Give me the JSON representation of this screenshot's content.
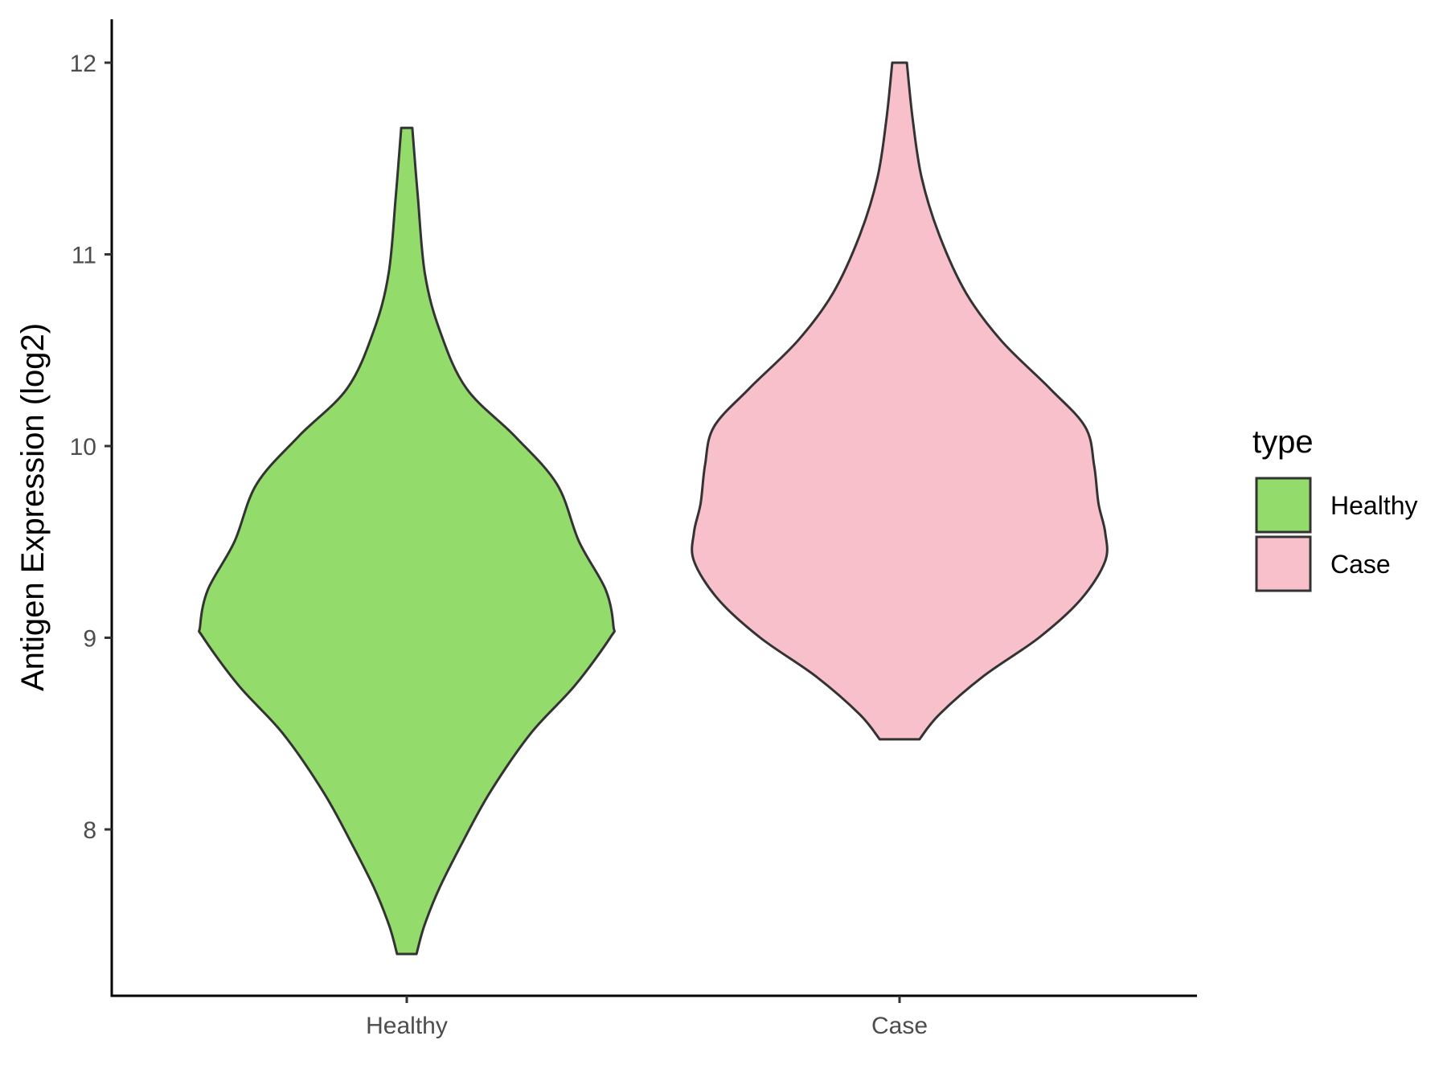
{
  "chart_data": {
    "type": "violin",
    "ylabel": "Antigen Expression (log2)",
    "xlabel": "",
    "categories": [
      "Healthy",
      "Case"
    ],
    "yticks": [
      8,
      9,
      10,
      11,
      12
    ],
    "ylim": [
      7.13,
      12.23
    ],
    "grid": false,
    "legend": {
      "title": "type",
      "placement": "right",
      "entries": [
        {
          "label": "Healthy",
          "color": "#93DC6B"
        },
        {
          "label": "Case",
          "color": "#F7C0CB"
        }
      ]
    },
    "series": [
      {
        "name": "Healthy",
        "color": "#93DC6B",
        "min": 7.35,
        "max": 11.66,
        "density_profile": [
          [
            7.35,
            0.044
          ],
          [
            7.5,
            0.08
          ],
          [
            7.7,
            0.15
          ],
          [
            7.95,
            0.26
          ],
          [
            8.2,
            0.38
          ],
          [
            8.5,
            0.56
          ],
          [
            8.75,
            0.76
          ],
          [
            9.0,
            0.92
          ],
          [
            9.06,
            0.935
          ],
          [
            9.25,
            0.9
          ],
          [
            9.5,
            0.78
          ],
          [
            9.8,
            0.68
          ],
          [
            10.05,
            0.49
          ],
          [
            10.3,
            0.27
          ],
          [
            10.6,
            0.15
          ],
          [
            10.9,
            0.082
          ],
          [
            11.3,
            0.05
          ],
          [
            11.66,
            0.025
          ]
        ]
      },
      {
        "name": "Case",
        "color": "#F7C0CB",
        "min": 8.47,
        "max": 12.0,
        "density_profile": [
          [
            8.47,
            0.09
          ],
          [
            8.6,
            0.18
          ],
          [
            8.8,
            0.38
          ],
          [
            9.0,
            0.63
          ],
          [
            9.2,
            0.82
          ],
          [
            9.4,
            0.93
          ],
          [
            9.55,
            0.93
          ],
          [
            9.7,
            0.9
          ],
          [
            9.9,
            0.88
          ],
          [
            10.1,
            0.84
          ],
          [
            10.3,
            0.68
          ],
          [
            10.55,
            0.46
          ],
          [
            10.8,
            0.3
          ],
          [
            11.1,
            0.18
          ],
          [
            11.4,
            0.1
          ],
          [
            11.7,
            0.06
          ],
          [
            12.0,
            0.033
          ]
        ]
      }
    ]
  }
}
